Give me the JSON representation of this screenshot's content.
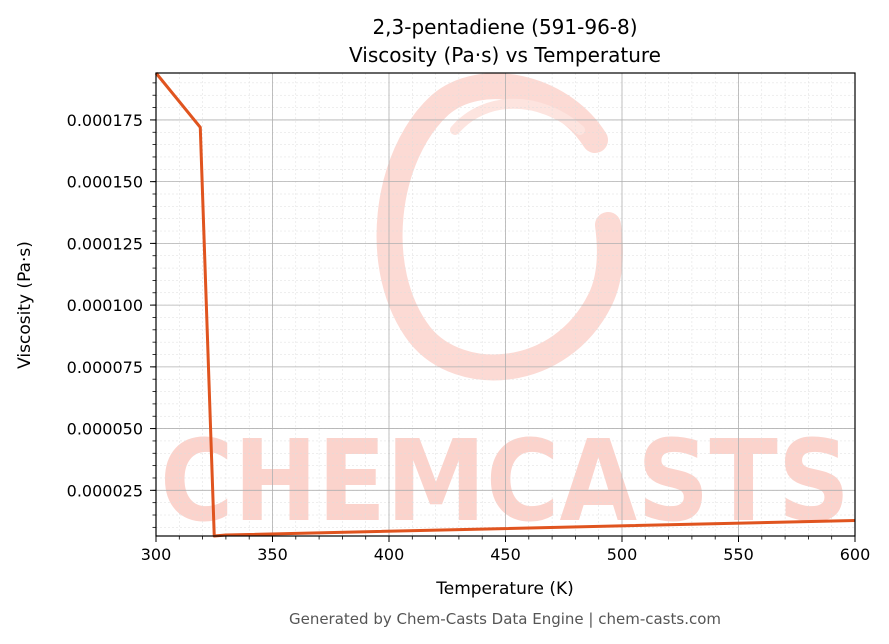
{
  "chart_data": {
    "type": "line",
    "title": "2,3-pentadiene (591-96-8)",
    "subtitle": "Viscosity (Pa·s) vs Temperature",
    "xlabel": "Temperature (K)",
    "ylabel": "Viscosity (Pa·s)",
    "xlim": [
      300,
      600
    ],
    "ylim": [
      6.5e-06,
      0.000194
    ],
    "xticks": [
      300,
      350,
      400,
      450,
      500,
      550,
      600
    ],
    "yticks": [
      2.5e-05,
      5e-05,
      7.5e-05,
      0.0001,
      0.000125,
      0.00015,
      0.000175
    ],
    "ytick_labels": [
      "0.000025",
      "0.000050",
      "0.000075",
      "0.000100",
      "0.000125",
      "0.000150",
      "0.000175"
    ],
    "grid": true,
    "series": [
      {
        "color": "#e0541f",
        "x": [
          300,
          319,
          325,
          330,
          600
        ],
        "y": [
          0.000194,
          0.000172,
          6.5e-06,
          6.9e-06,
          1.28e-05
        ]
      }
    ]
  },
  "watermark": {
    "text": "CHEMCASTS",
    "color": "#fbd3cc"
  },
  "footer": {
    "text": "Generated by Chem-Casts Data Engine | chem-casts.com"
  }
}
